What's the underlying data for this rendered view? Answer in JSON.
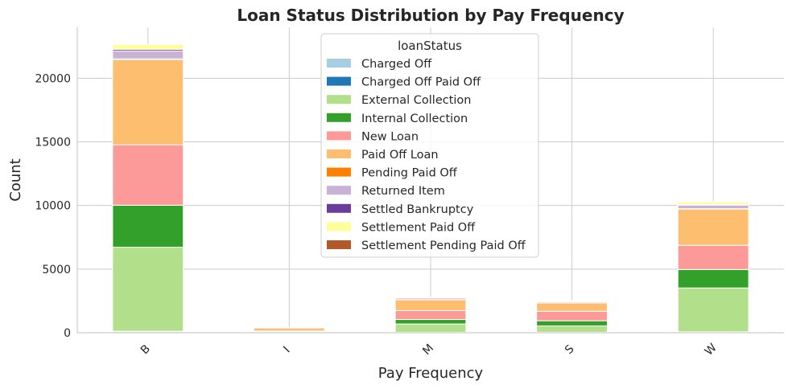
{
  "chart_data": {
    "type": "bar",
    "stacked": true,
    "title": "Loan Status Distribution by Pay Frequency",
    "xlabel": "Pay Frequency",
    "ylabel": "Count",
    "categories": [
      "B",
      "I",
      "M",
      "S",
      "W"
    ],
    "yticks": [
      0,
      5000,
      10000,
      15000,
      20000
    ],
    "ylim": [
      0,
      24000
    ],
    "grid": true,
    "legend": {
      "title": "loanStatus",
      "placement": "top-center"
    },
    "series": [
      {
        "name": "Charged Off",
        "color": "#a6cee3",
        "values": [
          80,
          5,
          30,
          30,
          50
        ]
      },
      {
        "name": "Charged Off Paid Off",
        "color": "#1f78b4",
        "values": [
          40,
          2,
          10,
          10,
          20
        ]
      },
      {
        "name": "External Collection",
        "color": "#b2df8a",
        "values": [
          6600,
          60,
          650,
          500,
          3450
        ]
      },
      {
        "name": "Internal Collection",
        "color": "#33a02c",
        "values": [
          3300,
          20,
          350,
          400,
          1450
        ]
      },
      {
        "name": "New Loan",
        "color": "#fb9a99",
        "values": [
          4750,
          50,
          700,
          750,
          1900
        ]
      },
      {
        "name": "Paid Off Loan",
        "color": "#fdbf6f",
        "values": [
          6700,
          240,
          850,
          650,
          2850
        ]
      },
      {
        "name": "Pending Paid Off",
        "color": "#ff7f00",
        "values": [
          50,
          5,
          10,
          10,
          30
        ]
      },
      {
        "name": "Returned Item",
        "color": "#cab2d6",
        "values": [
          620,
          8,
          130,
          90,
          280
        ]
      },
      {
        "name": "Settled Bankruptcy",
        "color": "#6a3d9a",
        "values": [
          120,
          2,
          20,
          20,
          60
        ]
      },
      {
        "name": "Settlement Paid Off",
        "color": "#ffff99",
        "values": [
          400,
          5,
          50,
          50,
          200
        ]
      },
      {
        "name": "Settlement Pending Paid Off",
        "color": "#b15928",
        "values": [
          20,
          1,
          5,
          5,
          10
        ]
      }
    ]
  }
}
